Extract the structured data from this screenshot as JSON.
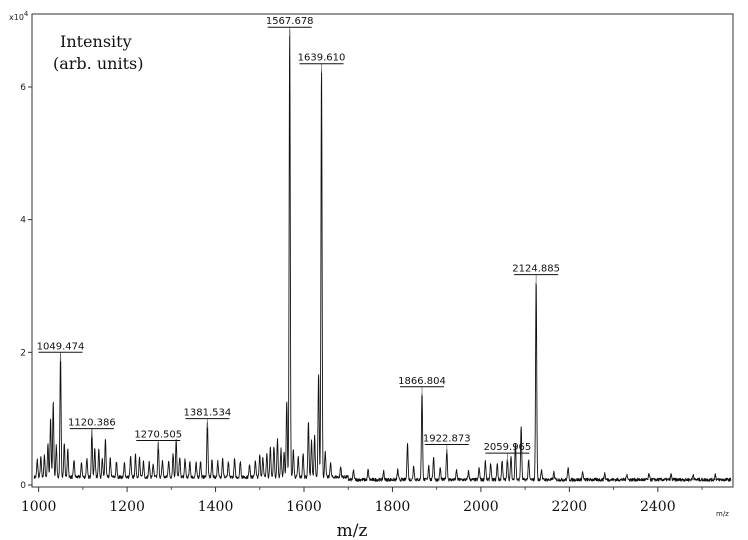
{
  "chart_data": {
    "type": "line",
    "title": "",
    "ylabel_line1": "Intensity",
    "ylabel_line2": "(arb. units)",
    "xlabel": "m/z",
    "x_unit_corner": "m/z",
    "y_multiplier_base": "x10",
    "y_multiplier_exp": "4",
    "xlim": [
      985,
      2570
    ],
    "ylim": [
      -300,
      71000
    ],
    "x_ticks": [
      1000,
      1200,
      1400,
      1600,
      1800,
      2000,
      2200,
      2400
    ],
    "x_tick_labels": [
      "1000",
      "1200",
      "1400",
      "1600",
      "1800",
      "2000",
      "2200",
      "2400"
    ],
    "y_ticks": [
      0,
      20000,
      40000,
      60000
    ],
    "y_tick_labels": [
      "0",
      "2",
      "4",
      "6"
    ],
    "grid": false,
    "legend": "none",
    "baseline": 800,
    "peaks": [
      [
        997,
        2600
      ],
      [
        1005,
        3000
      ],
      [
        1013,
        3200
      ],
      [
        1021,
        5000
      ],
      [
        1027,
        8800
      ],
      [
        1033,
        11200
      ],
      [
        1040,
        4800
      ],
      [
        1049.474,
        18500
      ],
      [
        1058,
        5200
      ],
      [
        1066,
        4200
      ],
      [
        1080,
        2600
      ],
      [
        1097,
        2200
      ],
      [
        1109,
        2800
      ],
      [
        1120.386,
        7000
      ],
      [
        1127,
        4400
      ],
      [
        1136,
        4200
      ],
      [
        1144,
        2700
      ],
      [
        1151,
        5700
      ],
      [
        1162,
        2800
      ],
      [
        1176,
        2300
      ],
      [
        1194,
        2100
      ],
      [
        1208,
        3100
      ],
      [
        1219,
        3300
      ],
      [
        1228,
        2900
      ],
      [
        1237,
        2400
      ],
      [
        1250,
        2200
      ],
      [
        1259,
        2000
      ],
      [
        1270.505,
        5200
      ],
      [
        1280,
        2500
      ],
      [
        1294,
        2600
      ],
      [
        1304,
        3600
      ],
      [
        1311,
        5500
      ],
      [
        1319,
        3100
      ],
      [
        1331,
        2700
      ],
      [
        1342,
        2300
      ],
      [
        1356,
        2100
      ],
      [
        1366,
        2500
      ],
      [
        1381.534,
        8500
      ],
      [
        1392,
        2600
      ],
      [
        1405,
        2400
      ],
      [
        1416,
        2900
      ],
      [
        1429,
        2200
      ],
      [
        1443,
        2700
      ],
      [
        1456,
        2400
      ],
      [
        1477,
        2000
      ],
      [
        1490,
        2600
      ],
      [
        1500,
        3400
      ],
      [
        1507,
        3100
      ],
      [
        1516,
        3800
      ],
      [
        1524,
        4500
      ],
      [
        1532,
        4800
      ],
      [
        1540,
        5700
      ],
      [
        1548,
        4200
      ],
      [
        1555,
        3600
      ],
      [
        1561,
        11500
      ],
      [
        1567.678,
        67500
      ],
      [
        1576,
        4100
      ],
      [
        1587,
        3000
      ],
      [
        1598,
        3600
      ],
      [
        1610,
        8400
      ],
      [
        1617,
        5400
      ],
      [
        1624,
        6300
      ],
      [
        1633,
        15500
      ],
      [
        1639.61,
        62000
      ],
      [
        1648,
        4000
      ],
      [
        1660,
        2200
      ],
      [
        1683,
        1500
      ],
      [
        1712,
        1400
      ],
      [
        1745,
        1500
      ],
      [
        1780,
        1300
      ],
      [
        1812,
        1500
      ],
      [
        1834,
        5600
      ],
      [
        1848,
        2200
      ],
      [
        1866.804,
        13300
      ],
      [
        1882,
        2200
      ],
      [
        1893,
        3500
      ],
      [
        1908,
        1800
      ],
      [
        1922.873,
        4600
      ],
      [
        1945,
        1400
      ],
      [
        1972,
        1300
      ],
      [
        1996,
        1800
      ],
      [
        2010,
        2900
      ],
      [
        2022,
        2500
      ],
      [
        2037,
        2400
      ],
      [
        2048,
        3000
      ],
      [
        2059.965,
        3300
      ],
      [
        2068,
        3500
      ],
      [
        2078,
        5500
      ],
      [
        2091,
        8000
      ],
      [
        2108,
        3100
      ],
      [
        2124.885,
        30200
      ],
      [
        2137,
        1600
      ],
      [
        2165,
        1100
      ],
      [
        2197,
        1800
      ],
      [
        2230,
        1200
      ],
      [
        2280,
        1000
      ],
      [
        2330,
        900
      ],
      [
        2380,
        850
      ],
      [
        2430,
        800
      ],
      [
        2480,
        800
      ],
      [
        2530,
        800
      ]
    ],
    "annotations": [
      {
        "mz": 1049.474,
        "label": "1049.474",
        "y": 18500
      },
      {
        "mz": 1120.386,
        "label": "1120.386",
        "y": 7000
      },
      {
        "mz": 1270.505,
        "label": "1270.505",
        "y": 5200
      },
      {
        "mz": 1381.534,
        "label": "1381.534",
        "y": 8500
      },
      {
        "mz": 1567.678,
        "label": "1567.678",
        "y": 67500
      },
      {
        "mz": 1639.61,
        "label": "1639.610",
        "y": 62000
      },
      {
        "mz": 1866.804,
        "label": "1866.804",
        "y": 13300
      },
      {
        "mz": 1922.873,
        "label": "1922.873",
        "y": 4600
      },
      {
        "mz": 2059.965,
        "label": "2059.965",
        "y": 3300
      },
      {
        "mz": 2124.885,
        "label": "2124.885",
        "y": 30200
      }
    ],
    "colors": {
      "trace": "#111111",
      "axis": "#333333"
    }
  }
}
